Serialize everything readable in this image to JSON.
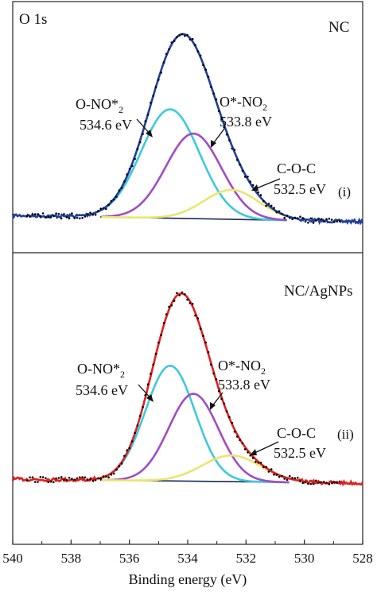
{
  "chart_data": {
    "type": "line",
    "xlabel": "Binding energy (eV)",
    "x_reversed": true,
    "xlim": [
      540,
      528
    ],
    "x_ticks": [
      "540",
      "538",
      "536",
      "534",
      "532",
      "530",
      "528"
    ],
    "colors": {
      "envelope_i": "#1f3f9a",
      "envelope_ii": "#e02020",
      "o_no2_star": "#3ec9dc",
      "o_star_no2": "#a24bc6",
      "coc": "#e9e66e",
      "baseline": "#1a2a5a",
      "raw": "#000000"
    },
    "panels": [
      {
        "title": "O 1s",
        "sample": "NC",
        "tag": "(i)",
        "peaks": [
          {
            "center": 534.6,
            "height": 137,
            "sigma": 1.0,
            "label": "O-NO*2",
            "energy": "534.6 eV"
          },
          {
            "center": 533.8,
            "height": 107,
            "sigma": 0.95,
            "label": "O*-NO2",
            "energy": "533.8 eV"
          },
          {
            "center": 532.5,
            "height": 37,
            "sigma": 0.95,
            "label": "C-O-C",
            "energy": "532.5 eV"
          }
        ]
      },
      {
        "sample": "NC/AgNPs",
        "tag": "(ii)",
        "peaks": [
          {
            "center": 534.6,
            "height": 145,
            "sigma": 0.85,
            "label": "O-NO*2",
            "energy": "534.6 eV"
          },
          {
            "center": 533.8,
            "height": 110,
            "sigma": 0.85,
            "label": "O*-NO2",
            "energy": "533.8 eV"
          },
          {
            "center": 532.5,
            "height": 33,
            "sigma": 1.0,
            "label": "C-O-C",
            "energy": "532.5 eV"
          }
        ]
      }
    ]
  },
  "text": {
    "title": "O 1s",
    "sample_i": "NC",
    "sample_ii": "NC/AgNPs",
    "tag_i": "(i)",
    "tag_ii": "(ii)",
    "o_no_prefix": "O-NO*",
    "o_star_prefix": "O*-NO",
    "sub2": "2",
    "e1": "534.6 eV",
    "e2": "533.8 eV",
    "coc": "C-O-C",
    "e3": "532.5 eV",
    "xlabel": "Binding energy (eV)"
  }
}
